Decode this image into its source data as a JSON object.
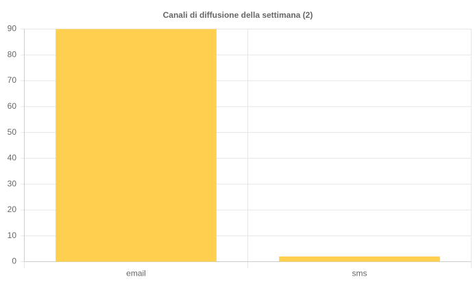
{
  "chart_data": {
    "type": "bar",
    "title": "Canali di diffusione della settimana (2)",
    "categories": [
      "email",
      "sms"
    ],
    "values": [
      90,
      2
    ],
    "color": "#ffcf4f",
    "ylim": [
      0,
      90
    ],
    "yticks": [
      0,
      10,
      20,
      30,
      40,
      50,
      60,
      70,
      80,
      90
    ],
    "grid": true
  }
}
